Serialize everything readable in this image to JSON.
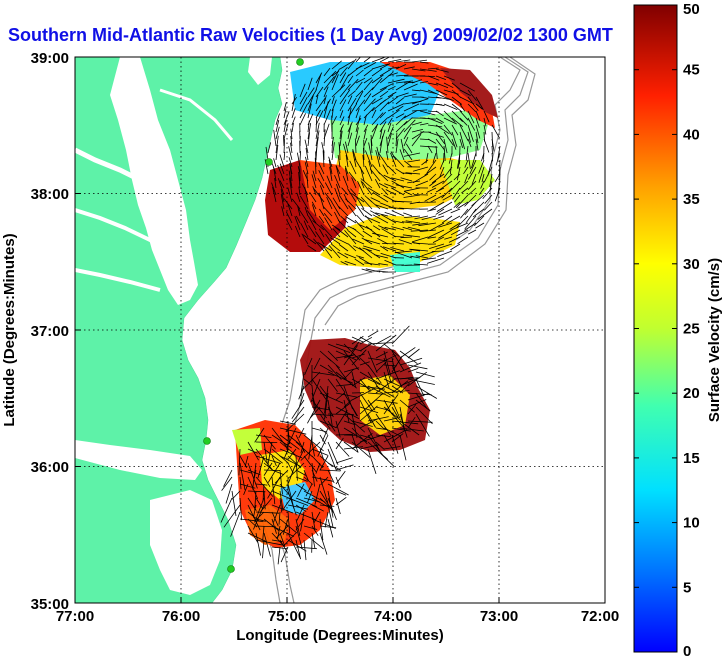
{
  "title": "Southern Mid-Atlantic Raw Velocities (1 Day Avg) 2009/02/02 1300 GMT",
  "x_axis": {
    "label": "Longitude (Degrees:Minutes)",
    "ticks": [
      "77:00",
      "76:00",
      "75:00",
      "74:00",
      "73:00",
      "72:00"
    ]
  },
  "y_axis": {
    "label": "Latitude (Degrees:Minutes)",
    "ticks": [
      "39:00",
      "38:00",
      "37:00",
      "36:00",
      "35:00"
    ]
  },
  "colorbar": {
    "label": "Surface Velocity (cm/s)",
    "ticks": [
      "50",
      "45",
      "40",
      "35",
      "30",
      "25",
      "20",
      "15",
      "10",
      "5",
      "0"
    ],
    "range": [
      0,
      50
    ],
    "colormap": "jet"
  },
  "map": {
    "lon_range": [
      -77,
      -72
    ],
    "lat_range": [
      35,
      39
    ],
    "land_color": "#5ef2a8",
    "water_color": "#ffffff",
    "grid": "dotted",
    "station_marker_color": "#22cc22"
  }
}
